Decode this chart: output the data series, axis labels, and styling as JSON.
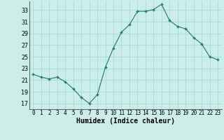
{
  "x": [
    0,
    1,
    2,
    3,
    4,
    5,
    6,
    7,
    8,
    9,
    10,
    11,
    12,
    13,
    14,
    15,
    16,
    17,
    18,
    19,
    20,
    21,
    22,
    23
  ],
  "y": [
    22.0,
    21.5,
    21.2,
    21.5,
    20.7,
    19.5,
    18.0,
    17.0,
    18.5,
    23.2,
    26.5,
    29.2,
    30.5,
    32.8,
    32.8,
    33.1,
    34.0,
    31.2,
    30.2,
    29.8,
    28.3,
    27.2,
    25.0,
    24.5
  ],
  "xlabel": "Humidex (Indice chaleur)",
  "line_color": "#1a7a6e",
  "marker_color": "#1a7a6e",
  "bg_color": "#cceee8",
  "grid_color": "#aadddd",
  "ylim": [
    16,
    34.5
  ],
  "xlim": [
    -0.5,
    23.5
  ],
  "yticks": [
    17,
    19,
    21,
    23,
    25,
    27,
    29,
    31,
    33
  ],
  "xticks": [
    0,
    1,
    2,
    3,
    4,
    5,
    6,
    7,
    8,
    9,
    10,
    11,
    12,
    13,
    14,
    15,
    16,
    17,
    18,
    19,
    20,
    21,
    22,
    23
  ],
  "ytick_fontsize": 6,
  "xtick_fontsize": 5.5,
  "xlabel_fontsize": 7
}
